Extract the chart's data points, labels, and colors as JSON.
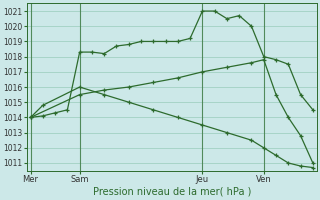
{
  "background_color": "#cce8e8",
  "grid_color": "#99ccbb",
  "line_color": "#2d6b2d",
  "xlabel": "Pression niveau de la mer( hPa )",
  "ylim": [
    1010.5,
    1021.5
  ],
  "yticks": [
    1011,
    1012,
    1013,
    1014,
    1015,
    1016,
    1017,
    1018,
    1019,
    1020,
    1021
  ],
  "xtick_labels": [
    "Mer",
    "Sam",
    "Jeu",
    "Ven"
  ],
  "xtick_positions": [
    0,
    4,
    14,
    19
  ],
  "xlim": [
    -0.3,
    23.3
  ],
  "total_points": 24,
  "line1_x": [
    0,
    1,
    2,
    3,
    4,
    5,
    6,
    7,
    8,
    9,
    10,
    11,
    12,
    13,
    14,
    15,
    16,
    17,
    18,
    19,
    20,
    21,
    22,
    23
  ],
  "line1_y": [
    1014.0,
    1014.1,
    1014.3,
    1014.5,
    1018.3,
    1018.3,
    1018.2,
    1018.7,
    1018.8,
    1019.0,
    1019.0,
    1019.0,
    1019.0,
    1019.2,
    1021.0,
    1021.0,
    1020.5,
    1020.7,
    1020.0,
    1018.0,
    1017.8,
    1017.5,
    1015.5,
    1014.5
  ],
  "line2_x": [
    0,
    4,
    6,
    8,
    10,
    12,
    14,
    16,
    18,
    19,
    20,
    21,
    22,
    23
  ],
  "line2_y": [
    1014.0,
    1015.5,
    1015.8,
    1016.0,
    1016.3,
    1016.6,
    1017.0,
    1017.3,
    1017.6,
    1017.8,
    1015.5,
    1014.0,
    1012.8,
    1011.0
  ],
  "line3_x": [
    0,
    1,
    4,
    6,
    8,
    10,
    12,
    14,
    16,
    18,
    19,
    20,
    21,
    22,
    23
  ],
  "line3_y": [
    1014.0,
    1014.8,
    1016.0,
    1015.5,
    1015.0,
    1014.5,
    1014.0,
    1013.5,
    1013.0,
    1012.5,
    1012.0,
    1011.5,
    1011.0,
    1010.8,
    1010.7
  ],
  "vline_positions": [
    0,
    4,
    14,
    19
  ]
}
